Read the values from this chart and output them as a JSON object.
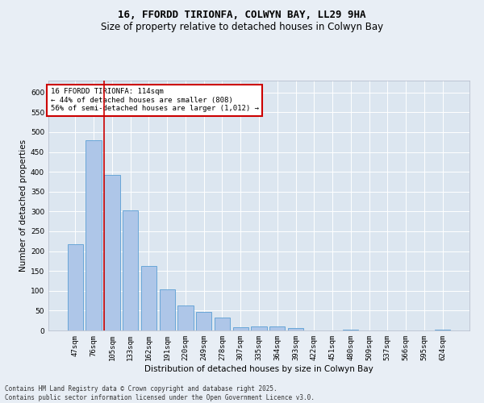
{
  "title_line1": "16, FFORDD TIRIONFA, COLWYN BAY, LL29 9HA",
  "title_line2": "Size of property relative to detached houses in Colwyn Bay",
  "xlabel": "Distribution of detached houses by size in Colwyn Bay",
  "ylabel": "Number of detached properties",
  "categories": [
    "47sqm",
    "76sqm",
    "105sqm",
    "133sqm",
    "162sqm",
    "191sqm",
    "220sqm",
    "249sqm",
    "278sqm",
    "307sqm",
    "335sqm",
    "364sqm",
    "393sqm",
    "422sqm",
    "451sqm",
    "480sqm",
    "509sqm",
    "537sqm",
    "566sqm",
    "595sqm",
    "624sqm"
  ],
  "values": [
    218,
    480,
    393,
    303,
    163,
    104,
    63,
    47,
    32,
    8,
    10,
    10,
    6,
    0,
    0,
    2,
    0,
    0,
    0,
    0,
    3
  ],
  "bar_color": "#aec6e8",
  "bar_edge_color": "#5a9fd4",
  "vline_x_index": 2,
  "vline_color": "#cc0000",
  "annotation_text": "16 FFORDD TIRIONFA: 114sqm\n← 44% of detached houses are smaller (808)\n56% of semi-detached houses are larger (1,012) →",
  "annotation_box_color": "#ffffff",
  "annotation_box_edge_color": "#cc0000",
  "ylim": [
    0,
    630
  ],
  "yticks": [
    0,
    50,
    100,
    150,
    200,
    250,
    300,
    350,
    400,
    450,
    500,
    550,
    600
  ],
  "footer_line1": "Contains HM Land Registry data © Crown copyright and database right 2025.",
  "footer_line2": "Contains public sector information licensed under the Open Government Licence v3.0.",
  "background_color": "#e8eef5",
  "plot_background_color": "#dce6f0",
  "grid_color": "#ffffff",
  "title_fontsize": 9,
  "subtitle_fontsize": 8.5,
  "axis_label_fontsize": 7.5,
  "tick_fontsize": 6.5,
  "annotation_fontsize": 6.5,
  "footer_fontsize": 5.5
}
